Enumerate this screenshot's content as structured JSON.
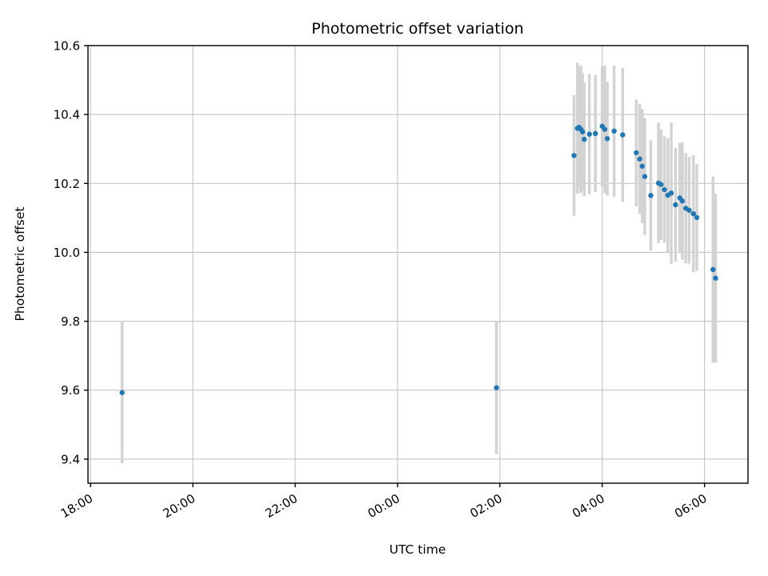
{
  "chart_data": {
    "type": "scatter",
    "title": "Photometric offset variation",
    "xlabel": "UTC time",
    "ylabel": "Photometric offset",
    "grid": true,
    "legend": "none",
    "marker_color": "#1f77b4",
    "errorbar_color": "#d3d3d3",
    "grid_color": "#bdbdbd",
    "spine_color": "#000000",
    "ylim": [
      9.33,
      10.6
    ],
    "xlim_hours": [
      17.95,
      30.85
    ],
    "x_tick_labels": [
      "18:00",
      "20:00",
      "22:00",
      "00:00",
      "02:00",
      "04:00",
      "06:00"
    ],
    "y_tick_values": [
      9.4,
      9.6,
      9.8,
      10.0,
      10.2,
      10.4,
      10.6
    ],
    "y_tick_labels": [
      "9.4",
      "9.6",
      "9.8",
      "10.0",
      "10.2",
      "10.4",
      "10.6"
    ],
    "points": [
      {
        "time": "18:37",
        "y": 9.593,
        "yerr": 0.205
      },
      {
        "time": "01:56",
        "y": 9.607,
        "yerr": 0.193
      },
      {
        "time": "03:27",
        "y": 10.281,
        "yerr": 0.175
      },
      {
        "time": "03:31",
        "y": 10.36,
        "yerr": 0.19
      },
      {
        "time": "03:33",
        "y": 10.363,
        "yerr": 0.175
      },
      {
        "time": "03:35",
        "y": 10.357,
        "yerr": 0.185
      },
      {
        "time": "03:37",
        "y": 10.35,
        "yerr": 0.17
      },
      {
        "time": "03:39",
        "y": 10.328,
        "yerr": 0.165
      },
      {
        "time": "03:45",
        "y": 10.343,
        "yerr": 0.175
      },
      {
        "time": "03:52",
        "y": 10.345,
        "yerr": 0.17
      },
      {
        "time": "04:00",
        "y": 10.366,
        "yerr": 0.175
      },
      {
        "time": "04:03",
        "y": 10.357,
        "yerr": 0.185
      },
      {
        "time": "04:06",
        "y": 10.33,
        "yerr": 0.165
      },
      {
        "time": "04:14",
        "y": 10.352,
        "yerr": 0.19
      },
      {
        "time": "04:24",
        "y": 10.341,
        "yerr": 0.195
      },
      {
        "time": "04:40",
        "y": 10.289,
        "yerr": 0.155
      },
      {
        "time": "04:44",
        "y": 10.271,
        "yerr": 0.16
      },
      {
        "time": "04:47",
        "y": 10.25,
        "yerr": 0.165
      },
      {
        "time": "04:50",
        "y": 10.22,
        "yerr": 0.17
      },
      {
        "time": "04:57",
        "y": 10.165,
        "yerr": 0.16
      },
      {
        "time": "05:06",
        "y": 10.201,
        "yerr": 0.175
      },
      {
        "time": "05:09",
        "y": 10.197,
        "yerr": 0.16
      },
      {
        "time": "05:13",
        "y": 10.182,
        "yerr": 0.155
      },
      {
        "time": "05:17",
        "y": 10.166,
        "yerr": 0.165
      },
      {
        "time": "05:21",
        "y": 10.172,
        "yerr": 0.205
      },
      {
        "time": "05:26",
        "y": 10.138,
        "yerr": 0.165
      },
      {
        "time": "05:31",
        "y": 10.158,
        "yerr": 0.16
      },
      {
        "time": "05:34",
        "y": 10.149,
        "yerr": 0.17
      },
      {
        "time": "05:38",
        "y": 10.128,
        "yerr": 0.16
      },
      {
        "time": "05:42",
        "y": 10.122,
        "yerr": 0.155
      },
      {
        "time": "05:47",
        "y": 10.112,
        "yerr": 0.17
      },
      {
        "time": "05:51",
        "y": 10.101,
        "yerr": 0.155
      },
      {
        "time": "06:10",
        "y": 9.95,
        "yerr": 0.27
      },
      {
        "time": "06:13",
        "y": 9.925,
        "yerr": 0.245
      }
    ]
  }
}
